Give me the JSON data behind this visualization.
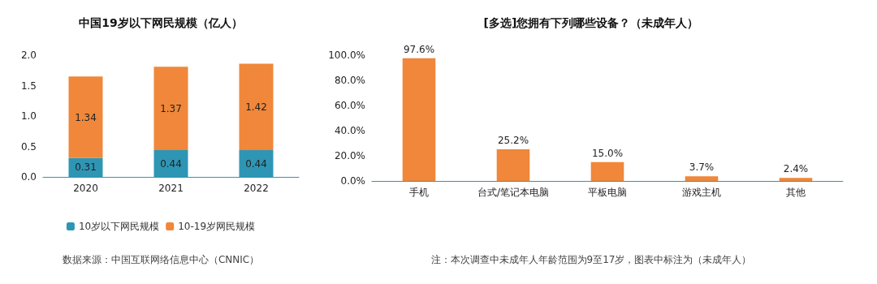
{
  "chart_data": [
    {
      "type": "bar",
      "title": "中国19岁以下网民规模（亿人）",
      "categories": [
        "2020",
        "2021",
        "2022"
      ],
      "stacked": true,
      "series": [
        {
          "name": "10岁以下网民规模",
          "color": "#2e96b4",
          "values": [
            0.31,
            0.44,
            0.44
          ]
        },
        {
          "name": "10-19岁网民规模",
          "color": "#f0873a",
          "values": [
            1.34,
            1.37,
            1.42
          ]
        }
      ],
      "ylim": [
        0,
        2
      ],
      "yticks": [
        {
          "value": 0,
          "label": "0.0"
        },
        {
          "value": 0.5,
          "label": "0.5"
        },
        {
          "value": 1,
          "label": "1.0"
        },
        {
          "value": 1.5,
          "label": "1.5"
        },
        {
          "value": 2,
          "label": "2.0"
        }
      ],
      "data_labels": true,
      "legend": "bottom",
      "grid": false,
      "annotations": [
        "数据来源：中国互联网络信息中心（CNNIC）"
      ]
    },
    {
      "type": "bar",
      "title": "[多选]您拥有下列哪些设备？（未成年人）",
      "categories": [
        "手机",
        "台式/笔记本电脑",
        "平板电脑",
        "游戏主机",
        "其他"
      ],
      "values": [
        97.6,
        25.2,
        15.0,
        3.7,
        2.4
      ],
      "value_labels": [
        "97.6%",
        "25.2%",
        "15.0%",
        "3.7%",
        "2.4%"
      ],
      "color": "#f0873a",
      "ylim": [
        0,
        100
      ],
      "yticks": [
        {
          "value": 0,
          "label": "0.0%"
        },
        {
          "value": 20,
          "label": "20.0%"
        },
        {
          "value": 40,
          "label": "40.0%"
        },
        {
          "value": 60,
          "label": "60.0%"
        },
        {
          "value": 80,
          "label": "80.0%"
        },
        {
          "value": 100,
          "label": "100.0%"
        }
      ],
      "grid": false,
      "annotations": [
        "注：本次调查中未成年人年龄范围为9至17岁，图表中标注为（未成年人）"
      ]
    }
  ]
}
